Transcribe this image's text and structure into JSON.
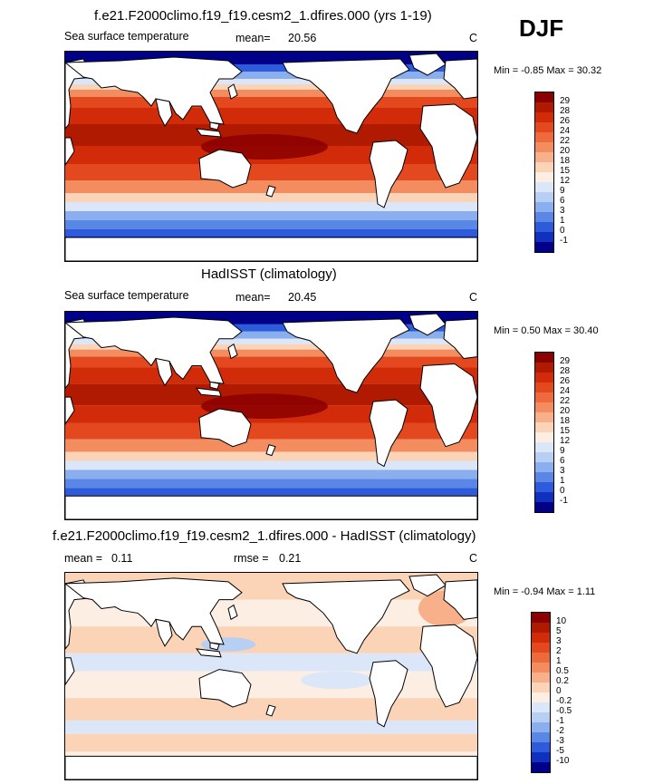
{
  "season": "DJF",
  "panels": [
    {
      "title": "f.e21.F2000climo.f19_f19.cesm2_1.dfires.000 (yrs 1-19)",
      "left_label": "Sea surface temperature",
      "stat1_label": "mean=",
      "stat1_value": "20.56",
      "units": "C",
      "minmax_label": "Min =  -0.85 Max =  30.32",
      "colorbar": {
        "levels": [
          "29",
          "28",
          "26",
          "24",
          "22",
          "20",
          "18",
          "15",
          "12",
          "9",
          "6",
          "3",
          "1",
          "0",
          "-1"
        ],
        "colors": [
          "#8b0000",
          "#b01a00",
          "#d22b0a",
          "#e4481e",
          "#ee6a3c",
          "#f38d60",
          "#f7b089",
          "#fbd3b6",
          "#fdeee4",
          "#dbe7f8",
          "#b7cff2",
          "#8aaeee",
          "#5a86e6",
          "#2d5bdc",
          "#1030c0",
          "#000088"
        ]
      }
    },
    {
      "title": "HadISST (climatology)",
      "left_label": "Sea surface temperature",
      "stat1_label": "mean=",
      "stat1_value": "20.45",
      "units": "C",
      "minmax_label": "Min =   0.50 Max =  30.40",
      "colorbar": {
        "levels": [
          "29",
          "28",
          "26",
          "24",
          "22",
          "20",
          "18",
          "15",
          "12",
          "9",
          "6",
          "3",
          "1",
          "0",
          "-1"
        ],
        "colors": [
          "#8b0000",
          "#b01a00",
          "#d22b0a",
          "#e4481e",
          "#ee6a3c",
          "#f38d60",
          "#f7b089",
          "#fbd3b6",
          "#fdeee4",
          "#dbe7f8",
          "#b7cff2",
          "#8aaeee",
          "#5a86e6",
          "#2d5bdc",
          "#1030c0",
          "#000088"
        ]
      }
    },
    {
      "title": "f.e21.F2000climo.f19_f19.cesm2_1.dfires.000 - HadISST (climatology)",
      "stat1_label": "mean =",
      "stat1_value": "0.11",
      "stat2_label": "rmse =",
      "stat2_value": "0.21",
      "units": "C",
      "minmax_label": "Min =  -0.94 Max =   1.11",
      "colorbar": {
        "levels": [
          "10",
          "5",
          "3",
          "2",
          "1",
          "0.5",
          "0.2",
          "0",
          "-0.2",
          "-0.5",
          "-1",
          "-2",
          "-3",
          "-5",
          "-10"
        ],
        "colors": [
          "#8b0000",
          "#b01a00",
          "#d22b0a",
          "#e4481e",
          "#ee6a3c",
          "#f38d60",
          "#f7b089",
          "#fbd3b6",
          "#fdeee4",
          "#dbe7f8",
          "#b7cff2",
          "#8aaeee",
          "#5a86e6",
          "#2d5bdc",
          "#1030c0",
          "#000088"
        ]
      }
    }
  ]
}
